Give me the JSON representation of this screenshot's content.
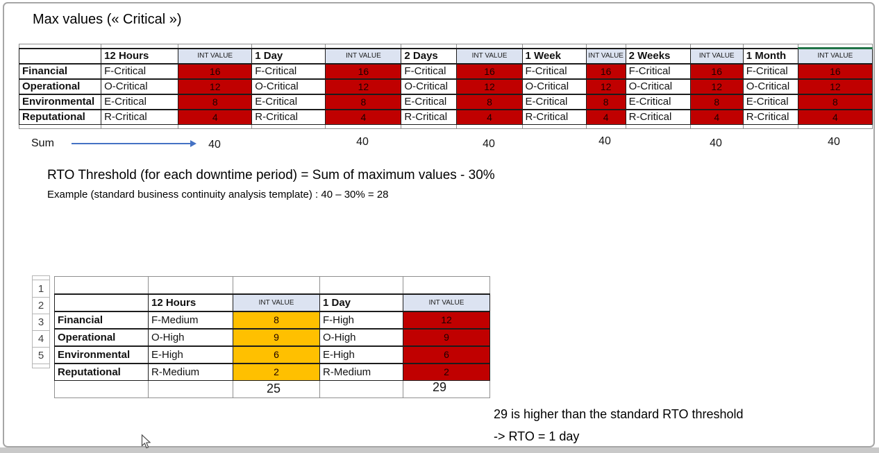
{
  "title": "Max values (« Critical »)",
  "colors": {
    "red": "#C00000",
    "orange": "#FFC000",
    "header_bg": "#DCE3F1",
    "green": "#217346",
    "blue": "#4472C4"
  },
  "icons": {
    "sum_arrow": "right-arrow",
    "cursor": "mouse-pointer-arrow"
  },
  "top_table": {
    "int_value_label": "INT VALUE",
    "periods": [
      "12 Hours",
      "1 Day",
      "2 Days",
      "1 Week",
      "2 Weeks",
      "1 Month"
    ],
    "rows": [
      {
        "category": "Financial",
        "level": "F-Critical",
        "value": "16"
      },
      {
        "category": "Operational",
        "level": "O-Critical",
        "value": "12"
      },
      {
        "category": "Environmental",
        "level": "E-Critical",
        "value": "8"
      },
      {
        "category": "Reputational",
        "level": "R-Critical",
        "value": "4"
      }
    ]
  },
  "sum": {
    "label": "Sum",
    "values": [
      "40",
      "40",
      "40",
      "40",
      "40",
      "40"
    ]
  },
  "threshold": {
    "line1": "RTO Threshold (for each downtime period)  = Sum of maximum values - 30%",
    "line2": "Example (standard business continuity analysis template) :  40 – 30% = 28"
  },
  "score_table": {
    "int_value_label": "INT VALUE",
    "periods": [
      "12 Hours",
      "1 Day"
    ],
    "row_numbers": [
      "1",
      "2",
      "3",
      "4",
      "5"
    ],
    "rows": [
      {
        "category": "Financial",
        "cells": [
          {
            "level": "F-Medium",
            "value": "8",
            "color": "orange"
          },
          {
            "level": "F-High",
            "value": "12",
            "color": "red"
          }
        ]
      },
      {
        "category": "Operational",
        "cells": [
          {
            "level": "O-High",
            "value": "9",
            "color": "orange"
          },
          {
            "level": "O-High",
            "value": "9",
            "color": "red"
          }
        ]
      },
      {
        "category": "Environmental",
        "cells": [
          {
            "level": "E-High",
            "value": "6",
            "color": "orange"
          },
          {
            "level": "E-High",
            "value": "6",
            "color": "red"
          }
        ]
      },
      {
        "category": "Reputational",
        "cells": [
          {
            "level": "R-Medium",
            "value": "2",
            "color": "orange"
          },
          {
            "level": "R-Medium",
            "value": "2",
            "color": "red"
          }
        ]
      }
    ],
    "sums": [
      "25",
      "29"
    ]
  },
  "conclusion": {
    "line1": "29 is higher than the standard RTO threshold",
    "line2": "-> RTO = 1 day"
  }
}
